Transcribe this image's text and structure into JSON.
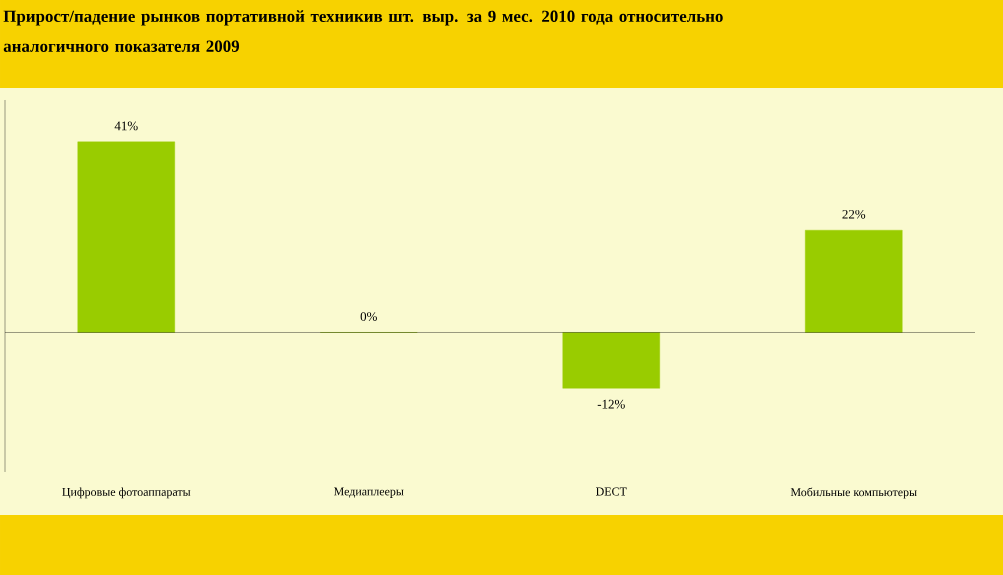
{
  "chart_data": {
    "type": "bar",
    "title": "Прирост/падение рынков портативной техникив шт. выр. за 9 мес. 2010 года относительно аналогичного показателя 2009",
    "categories": [
      "Цифровые фотоаппараты",
      "Медиаплееры",
      "DECT",
      "Мобильные компьютеры"
    ],
    "values": [
      41,
      0,
      -12,
      22
    ],
    "value_labels": [
      "41%",
      "0%",
      "-12%",
      "22%"
    ],
    "color": "#99cc00",
    "ylim": [
      -30,
      50
    ]
  }
}
